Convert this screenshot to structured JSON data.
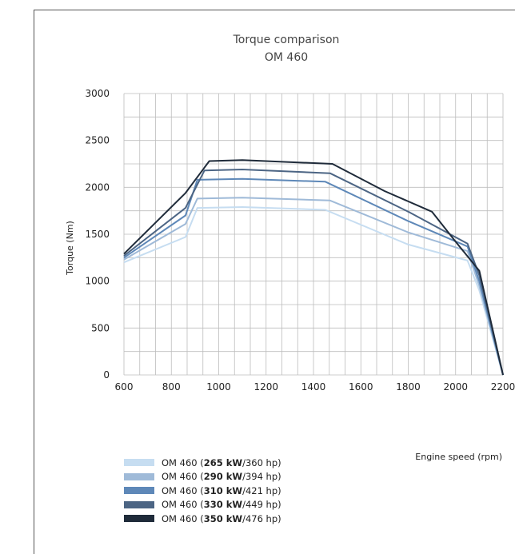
{
  "chart_data": {
    "type": "line",
    "title": "Torque comparison",
    "subtitle": "OM 460",
    "xlabel": "Engine speed (rpm)",
    "ylabel": "Torque (Nm)",
    "xlim": [
      600,
      2200
    ],
    "ylim": [
      0,
      3000
    ],
    "x_ticks": [
      "600",
      "800",
      "1000",
      "1200",
      "1400",
      "1600",
      "1800",
      "2000",
      "2200"
    ],
    "y_ticks": [
      "0",
      "500",
      "1000",
      "1500",
      "2000",
      "2500",
      "3000"
    ],
    "grid": true,
    "legend_position": "bottom-left",
    "series": [
      {
        "name": "OM 460 (265 kW/360 hp)",
        "label_prefix": "OM 460 (",
        "label_bold": "265 kW",
        "label_suffix": "/360 hp)",
        "color": "#c6ddf1",
        "x": [
          600,
          860,
          910,
          1100,
          1450,
          1800,
          2050,
          2100,
          2200
        ],
        "y": [
          1200,
          1470,
          1780,
          1790,
          1760,
          1390,
          1220,
          900,
          0
        ]
      },
      {
        "name": "OM 460 (290 kW/394 hp)",
        "label_prefix": "OM 460 (",
        "label_bold": "290 kW",
        "label_suffix": "/394 hp)",
        "color": "#9fbad8",
        "x": [
          600,
          860,
          910,
          1100,
          1470,
          1800,
          2050,
          2100,
          2200
        ],
        "y": [
          1230,
          1610,
          1880,
          1890,
          1860,
          1520,
          1320,
          950,
          0
        ]
      },
      {
        "name": "OM 460 (310 kW/421 hp)",
        "label_prefix": "OM 460 (",
        "label_bold": "310 kW",
        "label_suffix": "/421 hp)",
        "color": "#5e88b8",
        "x": [
          600,
          860,
          910,
          1100,
          1450,
          1800,
          2050,
          2100,
          2200
        ],
        "y": [
          1250,
          1700,
          2080,
          2090,
          2060,
          1640,
          1370,
          1000,
          0
        ]
      },
      {
        "name": "OM 460 (330 kW/449 hp)",
        "label_prefix": "OM 460 (",
        "label_bold": "330 kW",
        "label_suffix": "/449 hp)",
        "color": "#4c6584",
        "x": [
          600,
          860,
          940,
          1100,
          1470,
          1800,
          2050,
          2100,
          2200
        ],
        "y": [
          1270,
          1780,
          2180,
          2190,
          2150,
          1740,
          1400,
          1060,
          0
        ]
      },
      {
        "name": "OM 460 (350 kW/476 hp)",
        "label_prefix": "OM 460 (",
        "label_bold": "350 kW",
        "label_suffix": "/476 hp)",
        "color": "#1f2b3a",
        "x": [
          600,
          860,
          960,
          1100,
          1480,
          1700,
          1900,
          2000,
          2100,
          2200
        ],
        "y": [
          1290,
          1940,
          2280,
          2290,
          2250,
          1960,
          1740,
          1420,
          1110,
          0
        ]
      }
    ]
  }
}
